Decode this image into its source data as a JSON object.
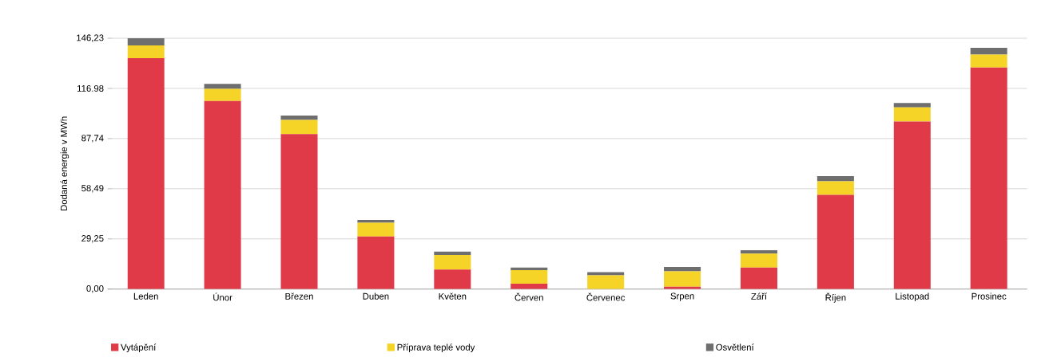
{
  "chart_data": {
    "type": "bar",
    "stacked": true,
    "ylabel": "Dodaná energie v MWh",
    "categories": [
      "Leden",
      "Únor",
      "Březen",
      "Duben",
      "Květen",
      "Červen",
      "Červenec",
      "Srpen",
      "Září",
      "Říjen",
      "Listopad",
      "Prosinec"
    ],
    "series": [
      {
        "name": "Vytápění",
        "color": "#e03a48",
        "values": [
          134.6,
          109.7,
          90.4,
          30.7,
          11.4,
          3.1,
          0,
          1.4,
          12.5,
          54.9,
          97.7,
          129.2
        ]
      },
      {
        "name": "Příprava teplé vody",
        "color": "#f5d327",
        "values": [
          7.5,
          7.0,
          8.2,
          8.0,
          8.5,
          7.9,
          8.0,
          8.9,
          8.2,
          7.9,
          8.2,
          7.5
        ]
      },
      {
        "name": "Osvětlení",
        "color": "#6e6e6e",
        "values": [
          4.1,
          2.9,
          2.6,
          1.6,
          1.9,
          1.6,
          1.9,
          2.6,
          2.0,
          3.1,
          2.6,
          3.9
        ]
      }
    ],
    "ylim": [
      0,
      146.23
    ],
    "yticks": [
      {
        "value": 0,
        "label": "0,00"
      },
      {
        "value": 29.25,
        "label": "29,25"
      },
      {
        "value": 58.49,
        "label": "58,49"
      },
      {
        "value": 87.74,
        "label": "87,74"
      },
      {
        "value": 116.98,
        "label": "116.98"
      },
      {
        "value": 146.23,
        "label": "146,23"
      }
    ],
    "grid": "y",
    "legend": "bottom"
  }
}
